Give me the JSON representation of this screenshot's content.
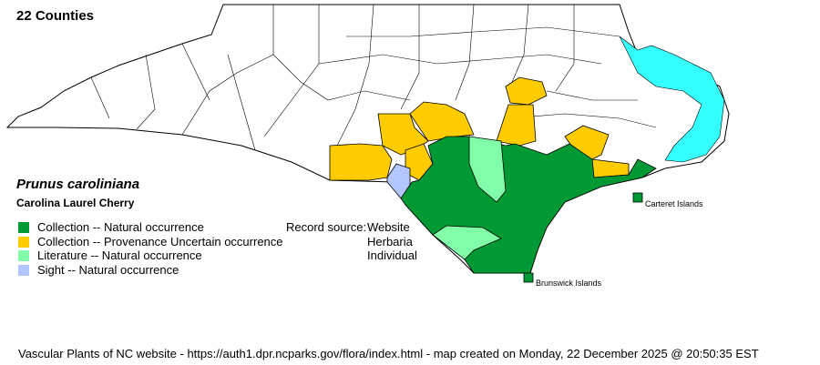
{
  "title": "22 Counties",
  "species": {
    "scientific_name": "Prunus caroliniana",
    "common_name": "Carolina Laurel Cherry"
  },
  "colors": {
    "natural": "#009933",
    "provenance_uncertain": "#FFCC00",
    "literature": "#80FFA8",
    "sight": "#B3C6FF",
    "water": "#33FFFF",
    "unrecorded": "#FFFFFF"
  },
  "legend": [
    {
      "label": "Collection -- Natural occurrence",
      "color": "#009933"
    },
    {
      "label": "Collection -- Provenance Uncertain occurrence",
      "color": "#FFCC00"
    },
    {
      "label": "Literature -- Natural occurrence",
      "color": "#80FFA8"
    },
    {
      "label": "Sight -- Natural occurrence",
      "color": "#B3C6FF"
    }
  ],
  "record_source": {
    "label": "Record source:",
    "items": [
      "Website",
      "Herbaria",
      "Individual"
    ]
  },
  "island_labels": {
    "carteret": "Carteret Islands",
    "brunswick": "Brunswick Islands"
  },
  "footer": "Vascular Plants of NC website - https://auth1.dpr.ncparks.gov/flora/index.html - map created on Monday, 22 December 2025 @ 20:50:35 EST"
}
